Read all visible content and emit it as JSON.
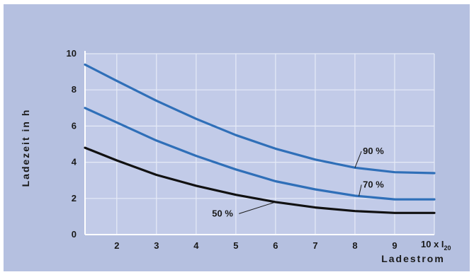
{
  "chart_data": {
    "type": "line",
    "title": "",
    "xlabel": "Ladestrom",
    "ylabel": "Ladezeit in h",
    "x_unit_label": {
      "prefix": "10 x I",
      "subscript": "20"
    },
    "xlim": [
      1.2,
      10
    ],
    "ylim": [
      0,
      10
    ],
    "xticks": [
      2,
      3,
      4,
      5,
      6,
      7,
      8,
      9
    ],
    "yticks": [
      0,
      2,
      4,
      6,
      8,
      10
    ],
    "grid": true,
    "colors": {
      "background": "#b5c0e0",
      "plot_area": "#c2cbe8",
      "grid": "#e6ebf7",
      "axis": "#ffffff"
    },
    "series": [
      {
        "name": "90 %",
        "color": "#2f6fb8",
        "x": [
          1.2,
          2,
          3,
          4,
          5,
          6,
          7,
          8,
          9,
          10
        ],
        "y": [
          9.4,
          8.5,
          7.4,
          6.4,
          5.5,
          4.75,
          4.15,
          3.7,
          3.45,
          3.4
        ]
      },
      {
        "name": "70 %",
        "color": "#2f6fb8",
        "x": [
          1.2,
          2,
          3,
          4,
          5,
          6,
          7,
          8,
          9,
          10
        ],
        "y": [
          7.0,
          6.2,
          5.2,
          4.35,
          3.6,
          2.95,
          2.5,
          2.15,
          1.95,
          1.95
        ]
      },
      {
        "name": "50 %",
        "color": "#111111",
        "x": [
          1.2,
          2,
          3,
          4,
          5,
          6,
          7,
          8,
          9,
          10
        ],
        "y": [
          4.8,
          4.1,
          3.3,
          2.7,
          2.2,
          1.8,
          1.5,
          1.3,
          1.2,
          1.2
        ]
      }
    ],
    "annotations": [
      {
        "series": "90 %",
        "text": "90 %",
        "at_x": 8.0,
        "label_x": 8.2,
        "label_y": 4.45
      },
      {
        "series": "70 %",
        "text": "70 %",
        "at_x": 8.1,
        "label_x": 8.2,
        "label_y": 2.6
      },
      {
        "series": "50 %",
        "text": "50 %",
        "at_x": 6.0,
        "label_x": 4.4,
        "label_y": 1.0
      }
    ]
  }
}
